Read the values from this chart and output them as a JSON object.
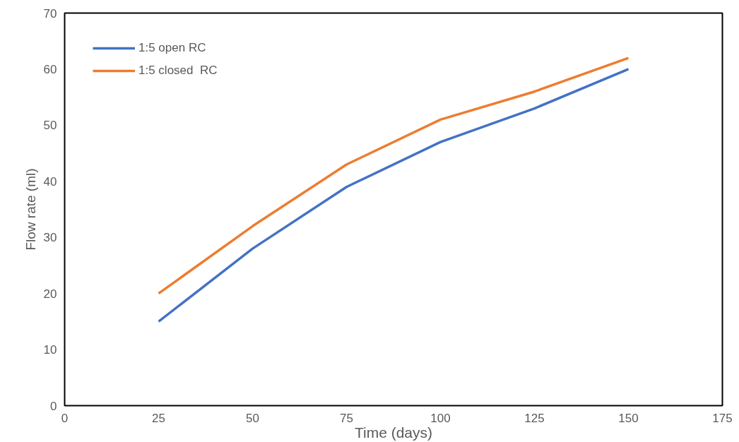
{
  "chart_data": {
    "type": "line",
    "xlabel": "Time (days)",
    "ylabel": "Flow rate (ml)",
    "x": [
      25,
      50,
      75,
      100,
      125,
      150
    ],
    "series": [
      {
        "name": "1:5 open RC",
        "color": "#4472c4",
        "values": [
          15,
          28,
          39,
          47,
          53,
          60
        ]
      },
      {
        "name": "1:5 closed  RC",
        "color": "#ed7d31",
        "values": [
          20,
          32,
          43,
          51,
          56,
          62
        ]
      }
    ],
    "xlim": [
      0,
      175
    ],
    "ylim": [
      0,
      70
    ],
    "xticks": [
      0,
      25,
      50,
      75,
      100,
      125,
      150,
      175
    ],
    "yticks": [
      0,
      10,
      20,
      30,
      40,
      50,
      60,
      70
    ],
    "grid": false,
    "legend": "top left",
    "marker": "none",
    "line_style": "solid"
  }
}
